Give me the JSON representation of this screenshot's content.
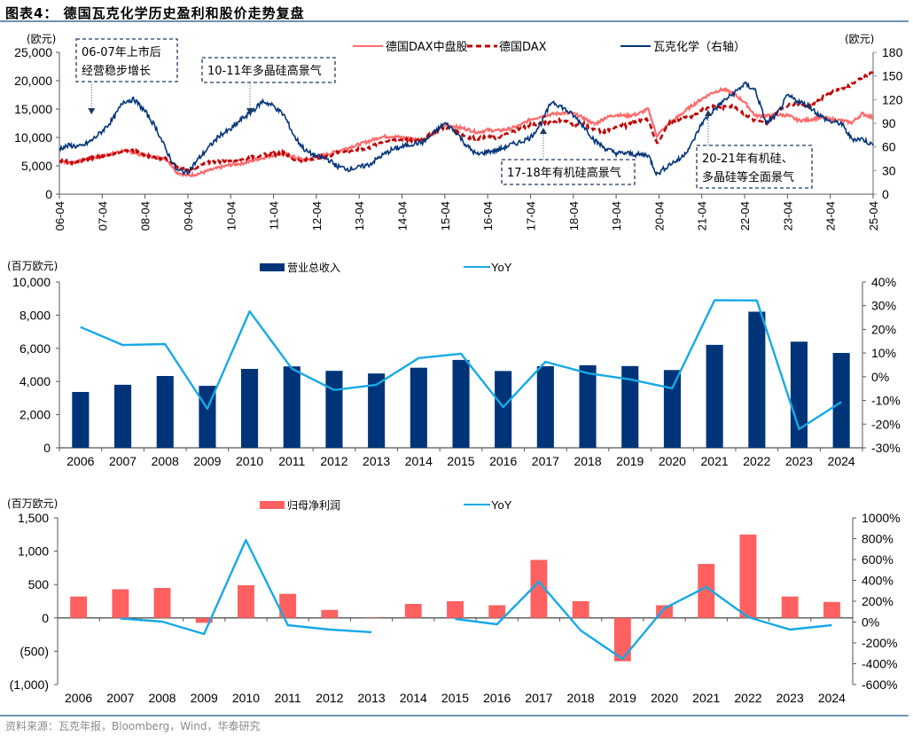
{
  "page": {
    "title": "图表4：  德国瓦克化学历史盈利和股价走势复盘",
    "source": "资料来源：瓦克年报，Bloomberg，Wind，华泰研究"
  },
  "colors": {
    "mdax": "#ff6b6b",
    "dax": "#c00000",
    "wacker": "#003479",
    "revenue_bar": "#003479",
    "profit_bar": "#ff6161",
    "yoy": "#16a9e6",
    "rule": "#6e92b3"
  },
  "chart_data": [
    {
      "type": "line",
      "title": "",
      "ylabel_left": "(欧元)",
      "ylabel_right": "(欧元)",
      "ylim_left": [
        0,
        25000
      ],
      "ylim_right": [
        0,
        180
      ],
      "yticks_left": [
        "0",
        "5,000",
        "10,000",
        "15,000",
        "20,000",
        "25,000"
      ],
      "yticks_right": [
        "0",
        "30",
        "60",
        "90",
        "120",
        "150",
        "180"
      ],
      "xticks": [
        "06-04",
        "07-04",
        "08-04",
        "09-04",
        "10-04",
        "11-04",
        "12-04",
        "13-04",
        "14-04",
        "15-04",
        "16-04",
        "17-04",
        "18-04",
        "19-04",
        "20-04",
        "21-04",
        "22-04",
        "23-04",
        "24-04",
        "25-04"
      ],
      "x_time": [
        2006.25,
        2006.5,
        2006.75,
        2007.0,
        2007.25,
        2007.5,
        2007.75,
        2008.0,
        2008.25,
        2008.5,
        2008.75,
        2009.0,
        2009.25,
        2009.5,
        2009.75,
        2010.0,
        2010.25,
        2010.5,
        2010.75,
        2011.0,
        2011.25,
        2011.5,
        2011.75,
        2012.0,
        2012.25,
        2012.5,
        2012.75,
        2013.0,
        2013.25,
        2013.5,
        2013.75,
        2014.0,
        2014.25,
        2014.5,
        2014.75,
        2015.0,
        2015.25,
        2015.5,
        2015.75,
        2016.0,
        2016.25,
        2016.5,
        2016.75,
        2017.0,
        2017.25,
        2017.5,
        2017.75,
        2018.0,
        2018.25,
        2018.5,
        2018.75,
        2019.0,
        2019.25,
        2019.5,
        2019.75,
        2020.0,
        2020.2,
        2020.5,
        2020.75,
        2021.0,
        2021.25,
        2021.5,
        2021.75,
        2022.0,
        2022.25,
        2022.5,
        2022.75,
        2023.0,
        2023.25,
        2023.5,
        2023.75,
        2024.0,
        2024.25,
        2024.5,
        2024.75,
        2025.0,
        2025.25
      ],
      "legend": [
        "德国DAX中盘股",
        "德国DAX",
        "瓦克化学（右轴）"
      ],
      "series": [
        {
          "name": "德国DAX中盘股",
          "axis": "left",
          "style": "solid",
          "values": [
            5900,
            5500,
            5900,
            6300,
            6800,
            7200,
            7700,
            7300,
            6800,
            6500,
            6200,
            3800,
            3300,
            3600,
            4200,
            4700,
            5200,
            5400,
            5900,
            6400,
            6900,
            7100,
            6500,
            6000,
            6600,
            7000,
            7600,
            8200,
            8800,
            9400,
            10100,
            10200,
            10000,
            9700,
            9600,
            10800,
            12200,
            11900,
            11500,
            10900,
            11300,
            11200,
            11500,
            12100,
            13200,
            13700,
            14100,
            14300,
            14200,
            13400,
            12300,
            13500,
            14000,
            13800,
            14100,
            15000,
            10300,
            12500,
            14000,
            15500,
            16800,
            17900,
            18500,
            17700,
            16200,
            13800,
            13800,
            14000,
            13900,
            13000,
            13100,
            13500,
            13200,
            13000,
            12600,
            14200,
            13500
          ]
        },
        {
          "name": "德国DAX",
          "axis": "left",
          "style": "dashed",
          "values": [
            6000,
            5600,
            5900,
            6300,
            6800,
            7200,
            7700,
            7600,
            6800,
            6500,
            6200,
            4700,
            4200,
            4900,
            5600,
            5800,
            6000,
            6200,
            6500,
            6900,
            7200,
            7300,
            6000,
            6000,
            6500,
            6700,
            7300,
            7600,
            7900,
            8200,
            9200,
            9500,
            9600,
            9500,
            9700,
            11000,
            11800,
            11200,
            10100,
            9800,
            10100,
            9800,
            10800,
            11500,
            12300,
            12400,
            12800,
            13100,
            12300,
            12300,
            11300,
            11000,
            12000,
            12100,
            12900,
            13200,
            9000,
            12500,
            13200,
            13700,
            14900,
            15500,
            15300,
            15600,
            14100,
            12900,
            12500,
            14500,
            15600,
            16000,
            15500,
            16700,
            18000,
            18500,
            19300,
            20600,
            21500
          ]
        },
        {
          "name": "瓦克化学（右轴）",
          "axis": "right",
          "style": "solid",
          "values": [
            58,
            62,
            60,
            68,
            80,
            95,
            118,
            120,
            105,
            85,
            55,
            30,
            28,
            45,
            60,
            75,
            82,
            95,
            105,
            118,
            112,
            100,
            72,
            55,
            48,
            45,
            35,
            32,
            34,
            38,
            48,
            56,
            60,
            64,
            66,
            78,
            90,
            80,
            62,
            50,
            54,
            56,
            62,
            66,
            72,
            90,
            118,
            110,
            100,
            86,
            68,
            58,
            52,
            52,
            50,
            50,
            25,
            38,
            45,
            62,
            90,
            105,
            118,
            128,
            140,
            132,
            90,
            100,
            125,
            118,
            112,
            100,
            92,
            90,
            70,
            70,
            62
          ]
        }
      ],
      "annotations": [
        {
          "text_line1": "06-07年上市后",
          "text_line2": "经营稳步增长",
          "arrow": "down",
          "x": 2007.0
        },
        {
          "text_line1": "10-11年多晶硅高景气",
          "text_line2": "",
          "arrow": "down",
          "x": 2010.7
        },
        {
          "text_line1": "17-18年有机硅高景气",
          "text_line2": "",
          "arrow": "up",
          "x": 2017.55
        },
        {
          "text_line1": "20-21年有机硅、",
          "text_line2": "多晶硅等全面景气",
          "arrow": "up",
          "x": 2021.4
        }
      ]
    },
    {
      "type": "bar",
      "title": "",
      "ylabel_left": "(百万欧元)",
      "ylim_left": [
        0,
        10000
      ],
      "ylim_right": [
        -30,
        40
      ],
      "yticks_left": [
        "0",
        "2,000",
        "4,000",
        "6,000",
        "8,000",
        "10,000"
      ],
      "yticks_right": [
        "-30%",
        "-20%",
        "-10%",
        "0%",
        "10%",
        "20%",
        "30%",
        "40%"
      ],
      "categories": [
        "2006",
        "2007",
        "2008",
        "2009",
        "2010",
        "2011",
        "2012",
        "2013",
        "2014",
        "2015",
        "2016",
        "2017",
        "2018",
        "2019",
        "2020",
        "2021",
        "2022",
        "2023",
        "2024"
      ],
      "legend": [
        "营业总收入",
        "YoY"
      ],
      "series": [
        {
          "name": "营业总收入",
          "type": "bar",
          "axis": "left",
          "values": [
            3370,
            3800,
            4330,
            3740,
            4760,
            4910,
            4640,
            4480,
            4830,
            5300,
            4630,
            4920,
            4980,
            4930,
            4690,
            6210,
            8210,
            6400,
            5720
          ]
        },
        {
          "name": "YoY",
          "type": "line",
          "axis": "right",
          "values": [
            21.0,
            13.4,
            13.8,
            -13.5,
            27.6,
            3.4,
            -5.6,
            -3.4,
            7.9,
            9.7,
            -12.8,
            6.3,
            1.5,
            -1.1,
            -4.9,
            32.3,
            32.2,
            -22.1,
            -10.6
          ]
        }
      ]
    },
    {
      "type": "bar",
      "title": "",
      "ylabel_left": "(百万欧元)",
      "ylim_left": [
        -1000,
        1500
      ],
      "ylim_right": [
        -600,
        1000
      ],
      "yticks_left": [
        "(1,000)",
        "(500)",
        "0",
        "500",
        "1,000",
        "1,500"
      ],
      "yticks_right": [
        "-600%",
        "-400%",
        "-200%",
        "0%",
        "200%",
        "400%",
        "600%",
        "800%",
        "1000%"
      ],
      "categories": [
        "2006",
        "2007",
        "2008",
        "2009",
        "2010",
        "2011",
        "2012",
        "2013",
        "2014",
        "2015",
        "2016",
        "2017",
        "2018",
        "2019",
        "2020",
        "2021",
        "2022",
        "2023",
        "2024"
      ],
      "legend": [
        "归母净利润",
        "YoY"
      ],
      "series": [
        {
          "name": "归母净利润",
          "type": "bar",
          "axis": "left",
          "values": [
            320,
            430,
            450,
            -75,
            490,
            360,
            120,
            6,
            210,
            250,
            190,
            870,
            250,
            -650,
            190,
            810,
            1250,
            320,
            240
          ]
        },
        {
          "name": "YoY",
          "type": "line",
          "axis": "right",
          "values": [
            null,
            35,
            4,
            -115,
            787,
            -30,
            -72,
            -97,
            null,
            30,
            -21,
            387,
            -81,
            -353,
            132,
            336,
            47,
            -72,
            -30
          ]
        }
      ]
    }
  ]
}
